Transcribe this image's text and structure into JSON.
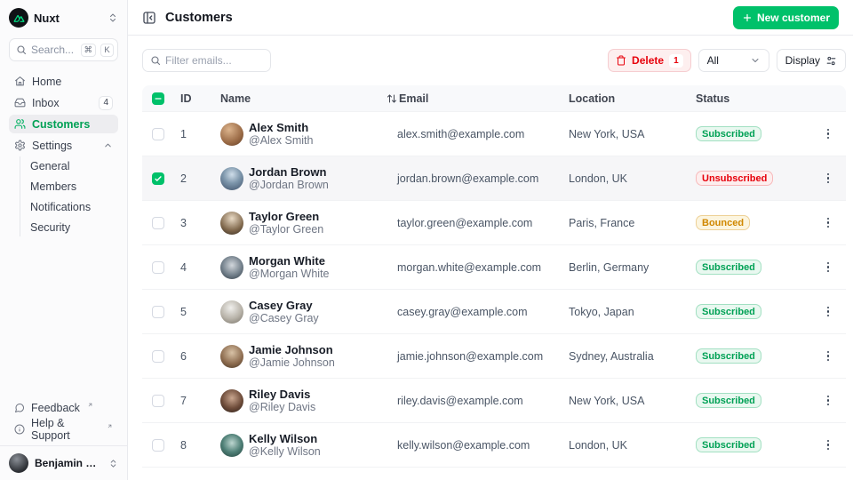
{
  "colors": {
    "primary": "#00c16a",
    "danger": "#e7000b",
    "warning": "#d08700"
  },
  "sidebar": {
    "workspace": {
      "name": "Nuxt",
      "logo_icon": "nuxt-logo-icon",
      "caret_icon": "chevrons-up-down-icon"
    },
    "search": {
      "placeholder": "Search...",
      "icon": "search-icon",
      "shortcut_keys": [
        "⌘",
        "K"
      ]
    },
    "nav": [
      {
        "label": "Home",
        "icon": "home-icon",
        "active": false
      },
      {
        "label": "Inbox",
        "icon": "inbox-icon",
        "active": false,
        "badge": "4"
      },
      {
        "label": "Customers",
        "icon": "users-icon",
        "active": true
      },
      {
        "label": "Settings",
        "icon": "gear-icon",
        "active": false,
        "caret": "chevron-up-icon"
      }
    ],
    "settings_children": [
      "General",
      "Members",
      "Notifications",
      "Security"
    ],
    "footer_links": [
      {
        "label": "Feedback",
        "icon": "message-circle-icon",
        "external": true
      },
      {
        "label": "Help & Support",
        "icon": "info-circle-icon",
        "external": true
      }
    ],
    "user": {
      "name": "Benjamin Canac",
      "caret_icon": "chevrons-up-down-icon"
    }
  },
  "header": {
    "title": "Customers",
    "collapse_icon": "panel-left-close-icon",
    "new_customer": {
      "label": "New customer",
      "icon": "plus-icon"
    }
  },
  "toolbar": {
    "filter": {
      "placeholder": "Filter emails...",
      "icon": "search-icon"
    },
    "delete": {
      "label": "Delete",
      "count": "1",
      "icon": "trash-icon"
    },
    "filter_select": {
      "value": "All",
      "icon": "chevron-down-icon"
    },
    "display": {
      "label": "Display",
      "icon": "sliders-icon"
    }
  },
  "table": {
    "header_checkbox_state": "indeterminate",
    "columns": {
      "id": "ID",
      "name": "Name",
      "email": "Email",
      "location": "Location",
      "status": "Status"
    },
    "email_sort_icon": "arrow-up-down-icon",
    "row_menu_icon": "ellipsis-vertical-icon",
    "status_styles": {
      "Subscribed": "success",
      "Unsubscribed": "error",
      "Bounced": "warning"
    },
    "rows": [
      {
        "id": "1",
        "name": "Alex Smith",
        "handle": "@Alex Smith",
        "email": "alex.smith@example.com",
        "location": "New York, USA",
        "status": "Subscribed",
        "checked": false
      },
      {
        "id": "2",
        "name": "Jordan Brown",
        "handle": "@Jordan Brown",
        "email": "jordan.brown@example.com",
        "location": "London, UK",
        "status": "Unsubscribed",
        "checked": true
      },
      {
        "id": "3",
        "name": "Taylor Green",
        "handle": "@Taylor Green",
        "email": "taylor.green@example.com",
        "location": "Paris, France",
        "status": "Bounced",
        "checked": false
      },
      {
        "id": "4",
        "name": "Morgan White",
        "handle": "@Morgan White",
        "email": "morgan.white@example.com",
        "location": "Berlin, Germany",
        "status": "Subscribed",
        "checked": false
      },
      {
        "id": "5",
        "name": "Casey Gray",
        "handle": "@Casey Gray",
        "email": "casey.gray@example.com",
        "location": "Tokyo, Japan",
        "status": "Subscribed",
        "checked": false
      },
      {
        "id": "6",
        "name": "Jamie Johnson",
        "handle": "@Jamie Johnson",
        "email": "jamie.johnson@example.com",
        "location": "Sydney, Australia",
        "status": "Subscribed",
        "checked": false
      },
      {
        "id": "7",
        "name": "Riley Davis",
        "handle": "@Riley Davis",
        "email": "riley.davis@example.com",
        "location": "New York, USA",
        "status": "Subscribed",
        "checked": false
      },
      {
        "id": "8",
        "name": "Kelly Wilson",
        "handle": "@Kelly Wilson",
        "email": "kelly.wilson@example.com",
        "location": "London, UK",
        "status": "Subscribed",
        "checked": false
      }
    ]
  }
}
